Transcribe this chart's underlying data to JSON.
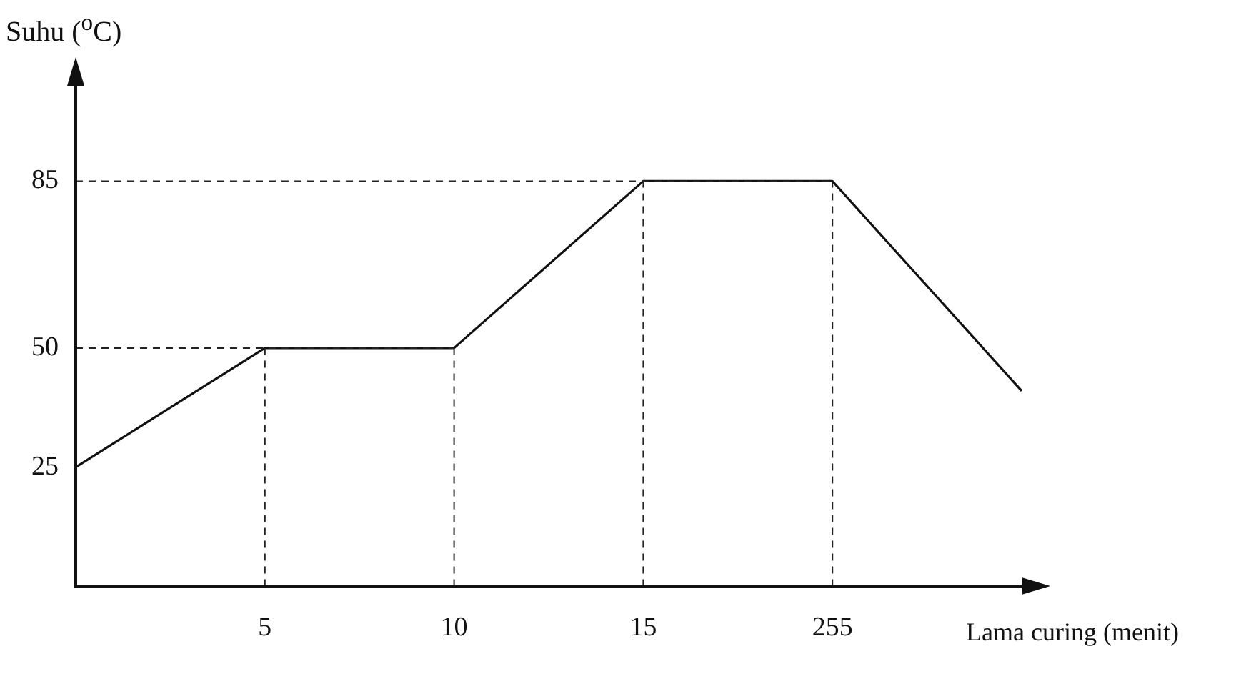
{
  "chart_data": {
    "type": "line",
    "xlabel": "Lama curing (menit)",
    "ylabel": "Suhu ($^{o}$C)",
    "categories": [
      null,
      "5",
      "10",
      "15",
      "255",
      null
    ],
    "series": [
      {
        "color": "#111111",
        "values": [
          25,
          50,
          50,
          85,
          85,
          41
        ]
      }
    ],
    "ylim": [
      0,
      105
    ],
    "yticks": [
      25,
      50,
      85
    ],
    "ref_lines": [
      {
        "axis": "y",
        "value": 50,
        "line_style": "dashed"
      },
      {
        "axis": "y",
        "value": 85,
        "line_style": "dashed"
      },
      {
        "axis": "x",
        "value": "5",
        "line_style": "dashed"
      },
      {
        "axis": "x",
        "value": "10",
        "line_style": "dashed"
      },
      {
        "axis": "x",
        "value": "15",
        "line_style": "dashed"
      },
      {
        "axis": "x",
        "value": "255",
        "line_style": "dashed"
      }
    ],
    "grid": false,
    "legend": false,
    "marker": "none",
    "line_style": "solid"
  }
}
